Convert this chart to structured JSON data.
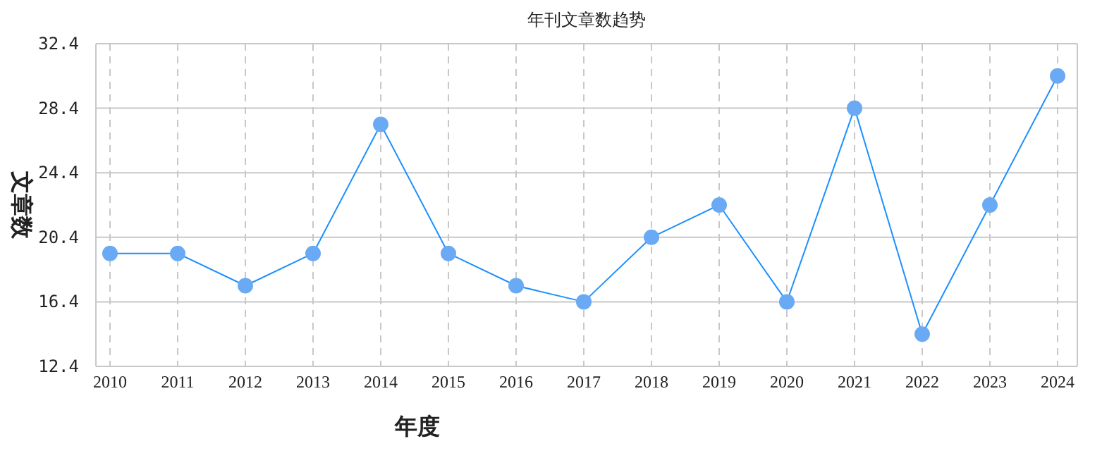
{
  "chart_data": {
    "type": "line",
    "title": "年刊文章数趋势",
    "xlabel": "年度",
    "ylabel": "文章数",
    "categories": [
      "2010",
      "2011",
      "2012",
      "2013",
      "2014",
      "2015",
      "2016",
      "2017",
      "2018",
      "2019",
      "2020",
      "2021",
      "2022",
      "2023",
      "2024"
    ],
    "series": [
      {
        "color": "#1e90ff",
        "values": [
          19.4,
          19.4,
          17.4,
          19.4,
          27.4,
          19.4,
          17.4,
          16.4,
          20.4,
          22.4,
          16.4,
          28.4,
          14.4,
          22.4,
          30.4
        ]
      }
    ],
    "ylim": [
      12.4,
      32.4
    ],
    "yticks": [
      {
        "value": 12.4,
        "label": "12.4"
      },
      {
        "value": 16.4,
        "label": "16.4"
      },
      {
        "value": 20.4,
        "label": "20.4"
      },
      {
        "value": 24.4,
        "label": "24.4"
      },
      {
        "value": 28.4,
        "label": "28.4"
      },
      {
        "value": 32.4,
        "label": "32.4"
      }
    ],
    "grid": true,
    "marker": "circle",
    "line_style": "solid"
  }
}
